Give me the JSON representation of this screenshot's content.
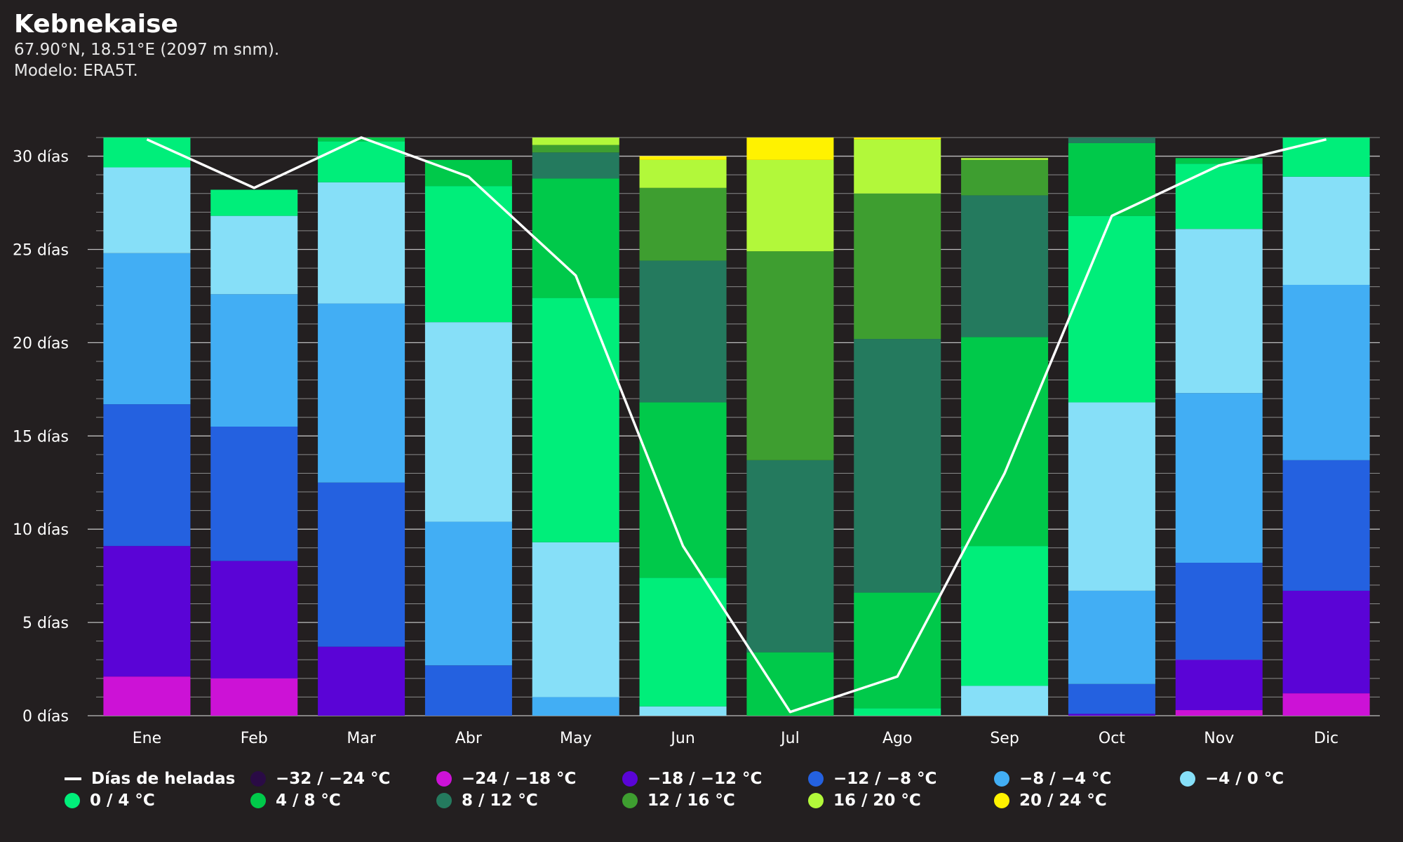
{
  "header": {
    "title": "Kebnekaise",
    "coords": "67.90°N, 18.51°E (2097 m snm).",
    "model": "Modelo: ERA5T."
  },
  "legend": {
    "frost_label": "Días de heladas",
    "frost_color": "#ffffff",
    "bins": [
      {
        "label": "−32 / −24 °C",
        "color": "#2a0b45"
      },
      {
        "label": "−24 / −18 °C",
        "color": "#cc12d6"
      },
      {
        "label": "−18 / −12 °C",
        "color": "#5a04d6"
      },
      {
        "label": "−12 / −8 °C",
        "color": "#2461e0"
      },
      {
        "label": "−8 / −4 °C",
        "color": "#42aef4"
      },
      {
        "label": "−4 / 0 °C",
        "color": "#86dff8"
      },
      {
        "label": "0 / 4 °C",
        "color": "#00ee7a"
      },
      {
        "label": "4 / 8 °C",
        "color": "#00c94a"
      },
      {
        "label": "8 / 12 °C",
        "color": "#247a5e"
      },
      {
        "label": "12 / 16 °C",
        "color": "#3e9e30"
      },
      {
        "label": "16 / 20 °C",
        "color": "#b2f83a"
      },
      {
        "label": "20 / 24 °C",
        "color": "#fff200"
      }
    ]
  },
  "chart_data": {
    "type": "bar",
    "stacked": true,
    "categories": [
      "Ene",
      "Feb",
      "Mar",
      "Abr",
      "May",
      "Jun",
      "Jul",
      "Ago",
      "Sep",
      "Oct",
      "Nov",
      "Dic"
    ],
    "ylim": [
      0,
      31
    ],
    "yticks": [
      0,
      5,
      10,
      15,
      20,
      25,
      30
    ],
    "ytick_labels": [
      "0 días",
      "5 días",
      "10 días",
      "15 días",
      "20 días",
      "25 días",
      "30 días"
    ],
    "grid": true,
    "legend_position": "bottom",
    "series": [
      {
        "name": "−32 / −24 °C",
        "color": "#2a0b45",
        "values": [
          0,
          0,
          0,
          0,
          0,
          0,
          0,
          0,
          0,
          0,
          0,
          0
        ]
      },
      {
        "name": "−24 / −18 °C",
        "color": "#cc12d6",
        "values": [
          2.1,
          2.0,
          0,
          0,
          0,
          0,
          0,
          0,
          0,
          0,
          0.3,
          1.2
        ]
      },
      {
        "name": "−18 / −12 °C",
        "color": "#5a04d6",
        "values": [
          7.0,
          6.3,
          3.7,
          0,
          0,
          0,
          0,
          0,
          0,
          0.1,
          2.7,
          5.5
        ]
      },
      {
        "name": "−12 / −8 °C",
        "color": "#2461e0",
        "values": [
          7.6,
          7.2,
          8.8,
          2.7,
          0,
          0,
          0,
          0,
          0,
          1.6,
          5.2,
          7.0
        ]
      },
      {
        "name": "−8 / −4 °C",
        "color": "#42aef4",
        "values": [
          8.1,
          7.1,
          9.6,
          7.7,
          1.0,
          0,
          0,
          0,
          0,
          5.0,
          9.1,
          9.4
        ]
      },
      {
        "name": "−4 / 0 °C",
        "color": "#86dff8",
        "values": [
          4.6,
          4.2,
          6.5,
          10.7,
          8.3,
          0.5,
          0,
          0,
          1.6,
          10.1,
          8.8,
          5.8
        ]
      },
      {
        "name": "0 / 4 °C",
        "color": "#00ee7a",
        "values": [
          1.6,
          1.4,
          2.2,
          7.3,
          13.1,
          6.9,
          0,
          0.4,
          7.5,
          10.0,
          3.5,
          2.1
        ]
      },
      {
        "name": "4 / 8 °C",
        "color": "#00c94a",
        "values": [
          0,
          0,
          0.2,
          1.4,
          6.4,
          9.4,
          3.4,
          6.2,
          11.2,
          3.9,
          0.3,
          0
        ],
        "_pad": null
      },
      {
        "name": "8 / 12 °C",
        "color": "#247a5e",
        "values": [
          0,
          0,
          0,
          0,
          1.4,
          7.6,
          10.3,
          13.6,
          7.6,
          0.3,
          0,
          0
        ]
      },
      {
        "name": "12 / 16 °C",
        "color": "#3e9e30",
        "values": [
          0,
          0,
          0,
          0,
          0.4,
          3.9,
          11.2,
          7.8,
          1.9,
          0,
          0,
          0
        ]
      },
      {
        "name": "16 / 20 °C",
        "color": "#b2f83a",
        "values": [
          0,
          0,
          0,
          0,
          0.4,
          1.5,
          4.9,
          2.9,
          0.1,
          0,
          0,
          0
        ]
      },
      {
        "name": "20 / 24 °C",
        "color": "#fff200",
        "values": [
          0,
          0,
          0,
          0,
          0,
          0.2,
          1.2,
          0.1,
          0,
          0,
          0,
          0
        ]
      }
    ],
    "line": {
      "name": "Días de heladas",
      "color": "#ffffff",
      "values": [
        30.9,
        28.3,
        31.0,
        28.9,
        23.6,
        9.1,
        0.2,
        2.1,
        13.0,
        26.8,
        29.5,
        30.9
      ]
    }
  }
}
